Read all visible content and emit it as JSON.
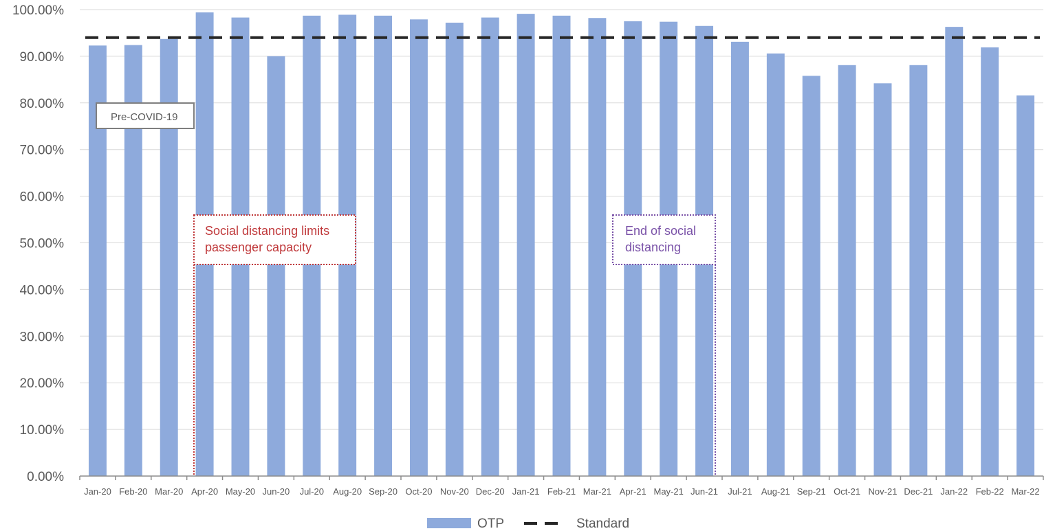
{
  "chart_data": {
    "type": "bar",
    "categories": [
      "Jan-20",
      "Feb-20",
      "Mar-20",
      "Apr-20",
      "May-20",
      "Jun-20",
      "Jul-20",
      "Aug-20",
      "Sep-20",
      "Oct-20",
      "Nov-20",
      "Dec-20",
      "Jan-21",
      "Feb-21",
      "Mar-21",
      "Apr-21",
      "May-21",
      "Jun-21",
      "Jul-21",
      "Aug-21",
      "Sep-21",
      "Oct-21",
      "Nov-21",
      "Dec-21",
      "Jan-22",
      "Feb-22",
      "Mar-22"
    ],
    "series": [
      {
        "name": "OTP",
        "type": "bar",
        "color": "#8eaadc",
        "values": [
          92.3,
          92.4,
          93.7,
          99.4,
          98.3,
          90.0,
          98.7,
          98.9,
          98.7,
          97.9,
          97.2,
          98.3,
          99.1,
          98.7,
          98.2,
          97.5,
          97.4,
          96.5,
          93.1,
          90.6,
          85.8,
          88.1,
          84.2,
          88.1,
          96.3,
          91.9,
          81.6
        ]
      },
      {
        "name": "Standard",
        "type": "line",
        "style": "dashed",
        "color": "#262626",
        "value": 94
      }
    ],
    "yticks": [
      "0.00%",
      "10.00%",
      "20.00%",
      "30.00%",
      "40.00%",
      "50.00%",
      "60.00%",
      "70.00%",
      "80.00%",
      "90.00%",
      "100.00%"
    ],
    "ylim": [
      0,
      100
    ],
    "grid": true,
    "legend_position": "bottom",
    "annotations": [
      {
        "text": "Pre-COVID-19",
        "border": "solid",
        "color": "#595959",
        "border_color": "#7f7f7f"
      },
      {
        "text": [
          "Social distancing limits",
          "passenger capacity"
        ],
        "border": "dotted",
        "color": "#c0393b",
        "border_color": "#c0393b"
      },
      {
        "text": [
          "End of social",
          "distancing"
        ],
        "border": "dotted",
        "color": "#7a52a8",
        "border_color": "#7a52a8"
      }
    ]
  },
  "legend": {
    "otp_label": "OTP",
    "standard_label": "Standard"
  }
}
